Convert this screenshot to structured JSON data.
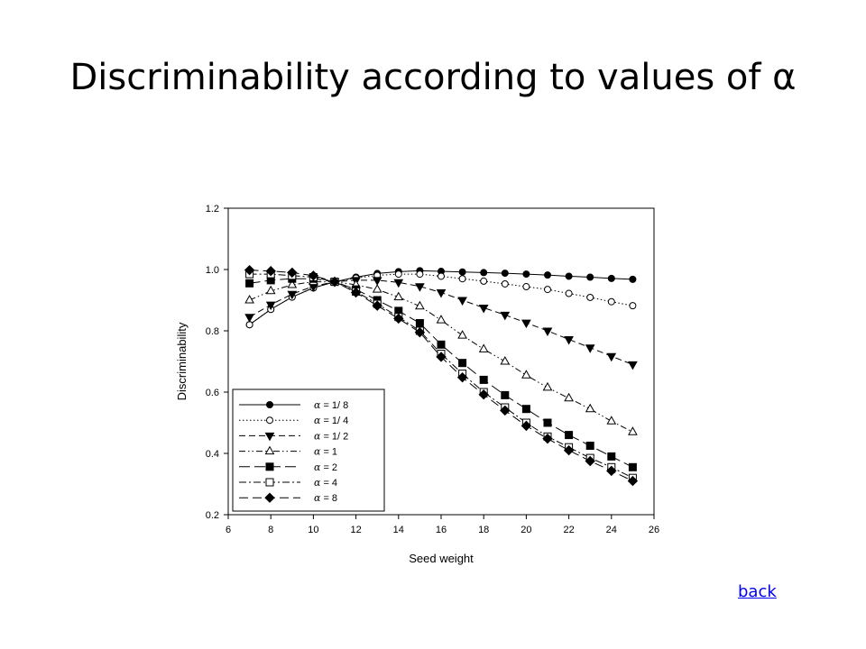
{
  "slide": {
    "title": "Discriminability according to values of α",
    "back_link": "back"
  },
  "chart_data": {
    "type": "line",
    "title": "",
    "xlabel": "Seed weight",
    "ylabel": "Discriminability",
    "xlim": [
      6,
      26
    ],
    "ylim": [
      0.2,
      1.2
    ],
    "xticks": [
      6,
      8,
      10,
      12,
      14,
      16,
      18,
      20,
      22,
      24,
      26
    ],
    "yticks": [
      "0.2",
      "0.4",
      "0.6",
      "0.8",
      "1.0",
      "1.2"
    ],
    "grid": false,
    "legend_position": "bottom-left",
    "x": [
      7,
      8,
      9,
      10,
      11,
      12,
      13,
      14,
      15,
      16,
      17,
      18,
      19,
      20,
      21,
      22,
      23,
      24,
      25
    ],
    "series": [
      {
        "name": "α = 1/8",
        "label_prefix": "α",
        "label_value": "= 1/ 8",
        "marker": "filled-circle",
        "dash": "none",
        "values": [
          0.82,
          0.87,
          0.91,
          0.94,
          0.96,
          0.975,
          0.987,
          0.993,
          0.996,
          0.994,
          0.992,
          0.99,
          0.988,
          0.985,
          0.982,
          0.978,
          0.975,
          0.971,
          0.968
        ]
      },
      {
        "name": "α = 1/4",
        "label_prefix": "α",
        "label_value": "= 1/ 4",
        "marker": "open-circle",
        "dash": "dot",
        "values": [
          0.82,
          0.87,
          0.91,
          0.94,
          0.96,
          0.972,
          0.981,
          0.985,
          0.985,
          0.978,
          0.97,
          0.962,
          0.953,
          0.944,
          0.935,
          0.922,
          0.909,
          0.895,
          0.882
        ]
      },
      {
        "name": "α = 1/2",
        "label_prefix": "α",
        "label_value": "= 1/ 2",
        "marker": "filled-triangle-down",
        "dash": "dash",
        "values": [
          0.845,
          0.885,
          0.92,
          0.945,
          0.96,
          0.965,
          0.965,
          0.958,
          0.945,
          0.925,
          0.9,
          0.875,
          0.852,
          0.826,
          0.8,
          0.772,
          0.745,
          0.717,
          0.69
        ]
      },
      {
        "name": "α = 1",
        "label_prefix": "α",
        "label_value": "= 1",
        "marker": "open-triangle-up",
        "dash": "dash-dot-dot",
        "values": [
          0.9,
          0.93,
          0.95,
          0.96,
          0.96,
          0.95,
          0.935,
          0.91,
          0.88,
          0.835,
          0.785,
          0.74,
          0.7,
          0.655,
          0.615,
          0.58,
          0.545,
          0.505,
          0.47
        ]
      },
      {
        "name": "α = 2",
        "label_prefix": "α",
        "label_value": "= 2",
        "marker": "filled-square",
        "dash": "long-dash",
        "values": [
          0.955,
          0.965,
          0.97,
          0.97,
          0.96,
          0.935,
          0.9,
          0.865,
          0.825,
          0.755,
          0.695,
          0.64,
          0.59,
          0.545,
          0.5,
          0.46,
          0.425,
          0.39,
          0.355
        ]
      },
      {
        "name": "α = 4",
        "label_prefix": "α",
        "label_value": "= 4",
        "marker": "open-square",
        "dash": "dash-dot",
        "values": [
          0.985,
          0.985,
          0.98,
          0.975,
          0.96,
          0.928,
          0.888,
          0.845,
          0.8,
          0.725,
          0.66,
          0.6,
          0.55,
          0.5,
          0.455,
          0.42,
          0.385,
          0.355,
          0.32
        ]
      },
      {
        "name": "α = 8",
        "label_prefix": "α",
        "label_value": "= 8",
        "marker": "filled-diamond",
        "dash": "long-dash-2",
        "values": [
          0.998,
          0.995,
          0.99,
          0.98,
          0.96,
          0.925,
          0.882,
          0.84,
          0.795,
          0.715,
          0.648,
          0.592,
          0.54,
          0.49,
          0.448,
          0.41,
          0.375,
          0.343,
          0.31
        ]
      }
    ]
  }
}
